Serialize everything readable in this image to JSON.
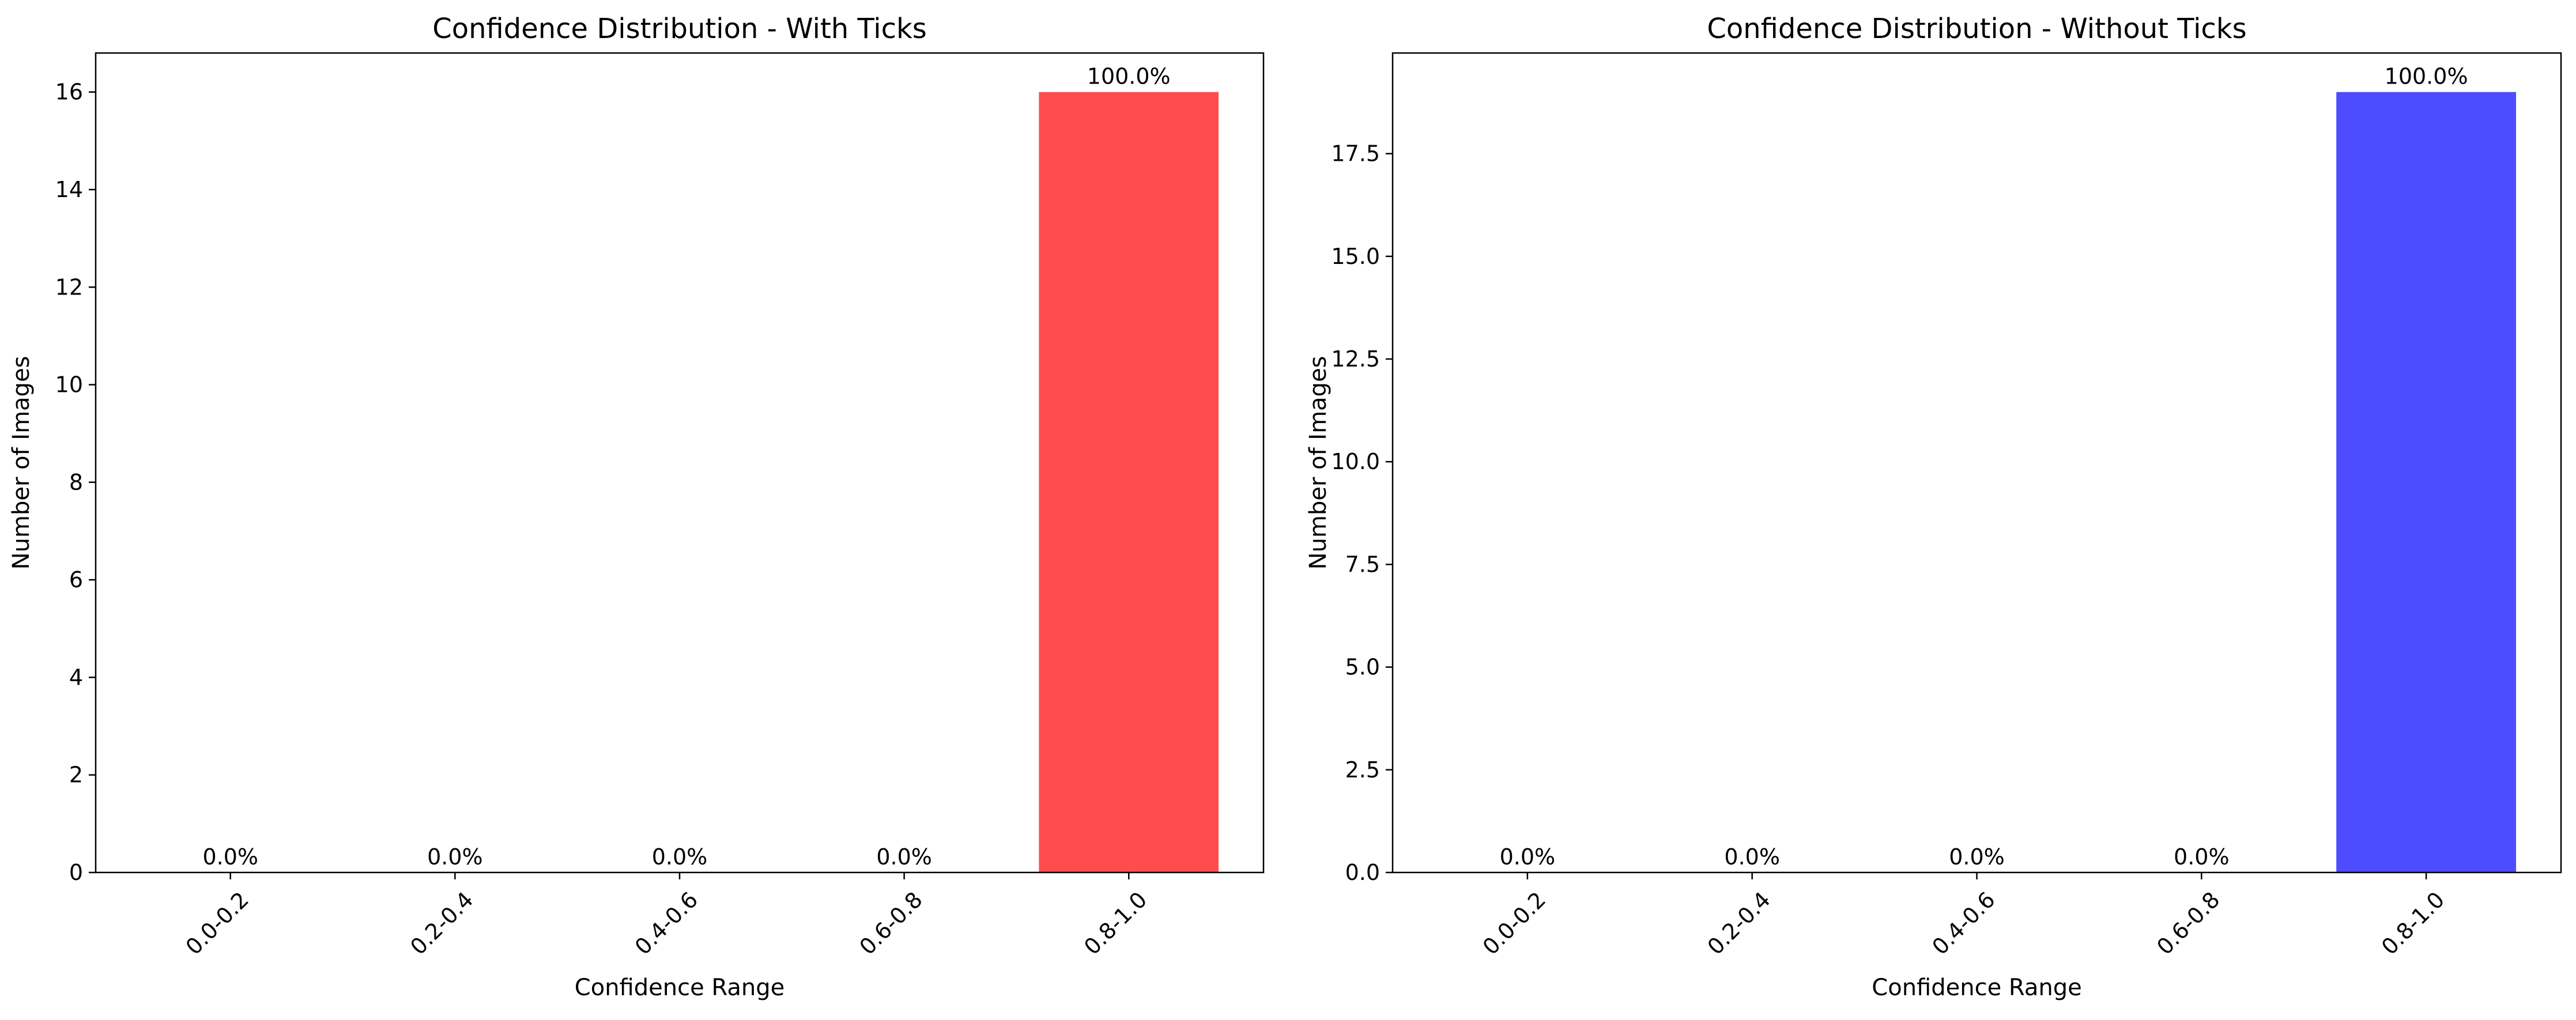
{
  "chart_data": [
    {
      "type": "bar",
      "title": "Confidence Distribution - With Ticks",
      "xlabel": "Confidence Range",
      "ylabel": "Number of Images",
      "categories": [
        "0.0-0.2",
        "0.2-0.4",
        "0.4-0.6",
        "0.6-0.8",
        "0.8-1.0"
      ],
      "values": [
        0,
        0,
        0,
        0,
        16
      ],
      "bar_labels": [
        "0.0%",
        "0.0%",
        "0.0%",
        "0.0%",
        "100.0%"
      ],
      "ylim": [
        0,
        16.8
      ],
      "yticks": [
        0,
        2,
        4,
        6,
        8,
        10,
        12,
        14,
        16
      ],
      "ytick_labels": [
        "0",
        "2",
        "4",
        "6",
        "8",
        "10",
        "12",
        "14",
        "16"
      ],
      "bar_color": "#ff4d4d",
      "grid": false
    },
    {
      "type": "bar",
      "title": "Confidence Distribution - Without Ticks",
      "xlabel": "Confidence Range",
      "ylabel": "Number of Images",
      "categories": [
        "0.0-0.2",
        "0.2-0.4",
        "0.4-0.6",
        "0.6-0.8",
        "0.8-1.0"
      ],
      "values": [
        0,
        0,
        0,
        0,
        19
      ],
      "bar_labels": [
        "0.0%",
        "0.0%",
        "0.0%",
        "0.0%",
        "100.0%"
      ],
      "ylim": [
        0,
        19.95
      ],
      "yticks": [
        0,
        2.5,
        5,
        7.5,
        10,
        12.5,
        15,
        17.5
      ],
      "ytick_labels": [
        "0.0",
        "2.5",
        "5.0",
        "7.5",
        "10.0",
        "12.5",
        "15.0",
        "17.5"
      ],
      "bar_color": "#4d4dff",
      "grid": false
    }
  ]
}
